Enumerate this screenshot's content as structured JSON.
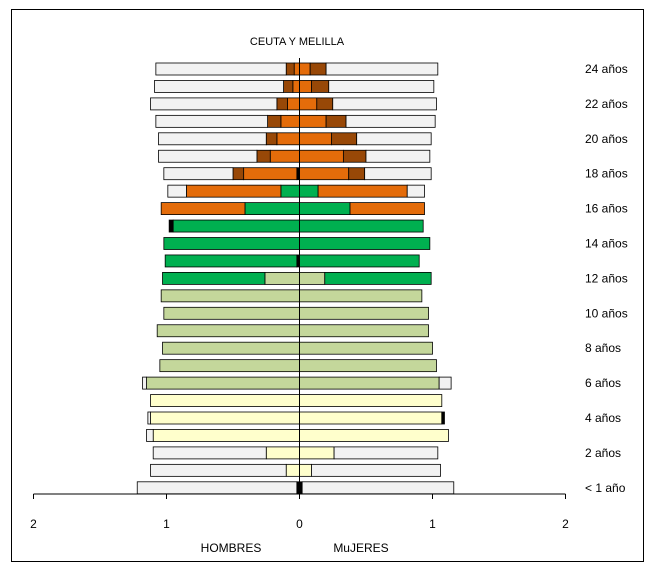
{
  "chart_data": {
    "type": "bar",
    "subtype": "population-pyramid-stacked",
    "title": "CEUTA Y MELILLA",
    "left_label": "HOMBRES",
    "right_label": "MuJERES",
    "x_ticks": [
      "2",
      "1",
      "0",
      "1",
      "2"
    ],
    "xlim": [
      -2,
      2
    ],
    "grid": false,
    "row_labels": {
      "0": "< 1 año",
      "2": "2 años",
      "4": "4 años",
      "6": "6 años",
      "8": "8 años",
      "10": "10 años",
      "12": "12 años",
      "14": "14 años",
      "16": "16 años",
      "18": "18 años",
      "20": "20 años",
      "22": "22 años",
      "24": "24 años"
    },
    "colors": {
      "outline": "#000000",
      "none": "#f2f2f2",
      "infantil": "#ffffcc",
      "primaria": "#c4d79b",
      "eso": "#00b050",
      "bachillerato": "#e46c0a",
      "fp": "#984807",
      "dark": "#000000"
    },
    "rows": [
      {
        "age": 0,
        "left": [
          [
            "dark",
            0.02
          ],
          [
            "none",
            1.2
          ]
        ],
        "right": [
          [
            "dark",
            0.02
          ],
          [
            "none",
            1.14
          ]
        ]
      },
      {
        "age": 1,
        "left": [
          [
            "infantil",
            0.1
          ],
          [
            "none",
            1.02
          ]
        ],
        "right": [
          [
            "infantil",
            0.09
          ],
          [
            "none",
            0.97
          ]
        ]
      },
      {
        "age": 2,
        "left": [
          [
            "infantil",
            0.25
          ],
          [
            "none",
            0.85
          ]
        ],
        "right": [
          [
            "infantil",
            0.26
          ],
          [
            "none",
            0.78
          ]
        ]
      },
      {
        "age": 3,
        "left": [
          [
            "infantil",
            1.1
          ],
          [
            "none",
            0.05
          ]
        ],
        "right": [
          [
            "infantil",
            1.12
          ]
        ]
      },
      {
        "age": 4,
        "left": [
          [
            "infantil",
            1.12
          ],
          [
            "none",
            0.02
          ]
        ],
        "right": [
          [
            "infantil",
            1.07
          ],
          [
            "dark",
            0.02
          ]
        ]
      },
      {
        "age": 5,
        "left": [
          [
            "infantil",
            1.12
          ]
        ],
        "right": [
          [
            "infantil",
            1.07
          ]
        ]
      },
      {
        "age": 6,
        "left": [
          [
            "primaria",
            1.15
          ],
          [
            "none",
            0.03
          ]
        ],
        "right": [
          [
            "primaria",
            1.05
          ],
          [
            "none",
            0.09
          ]
        ]
      },
      {
        "age": 7,
        "left": [
          [
            "primaria",
            1.05
          ]
        ],
        "right": [
          [
            "primaria",
            1.03
          ]
        ]
      },
      {
        "age": 8,
        "left": [
          [
            "primaria",
            1.03
          ]
        ],
        "right": [
          [
            "primaria",
            1.0
          ]
        ]
      },
      {
        "age": 9,
        "left": [
          [
            "primaria",
            1.07
          ]
        ],
        "right": [
          [
            "primaria",
            0.97
          ]
        ]
      },
      {
        "age": 10,
        "left": [
          [
            "primaria",
            1.02
          ]
        ],
        "right": [
          [
            "primaria",
            0.97
          ]
        ]
      },
      {
        "age": 11,
        "left": [
          [
            "primaria",
            1.04
          ]
        ],
        "right": [
          [
            "primaria",
            0.92
          ]
        ]
      },
      {
        "age": 12,
        "left": [
          [
            "primaria",
            0.26
          ],
          [
            "eso",
            0.77
          ]
        ],
        "right": [
          [
            "primaria",
            0.19
          ],
          [
            "eso",
            0.8
          ]
        ]
      },
      {
        "age": 13,
        "left": [
          [
            "dark",
            0.02
          ],
          [
            "eso",
            0.99
          ]
        ],
        "right": [
          [
            "eso",
            0.9
          ]
        ]
      },
      {
        "age": 14,
        "left": [
          [
            "eso",
            1.02
          ]
        ],
        "right": [
          [
            "eso",
            0.98
          ]
        ]
      },
      {
        "age": 15,
        "left": [
          [
            "eso",
            0.95
          ],
          [
            "dark",
            0.03
          ]
        ],
        "right": [
          [
            "eso",
            0.93
          ]
        ]
      },
      {
        "age": 16,
        "left": [
          [
            "eso",
            0.41
          ],
          [
            "bachillerato",
            0.63
          ]
        ],
        "right": [
          [
            "eso",
            0.38
          ],
          [
            "bachillerato",
            0.56
          ]
        ]
      },
      {
        "age": 17,
        "left": [
          [
            "eso",
            0.14
          ],
          [
            "bachillerato",
            0.71
          ],
          [
            "none",
            0.14
          ]
        ],
        "right": [
          [
            "eso",
            0.14
          ],
          [
            "bachillerato",
            0.67
          ],
          [
            "none",
            0.13
          ]
        ]
      },
      {
        "age": 18,
        "left": [
          [
            "dark",
            0.02
          ],
          [
            "bachillerato",
            0.4
          ],
          [
            "fp",
            0.08
          ],
          [
            "none",
            0.52
          ]
        ],
        "right": [
          [
            "bachillerato",
            0.37
          ],
          [
            "fp",
            0.12
          ],
          [
            "none",
            0.5
          ]
        ]
      },
      {
        "age": 19,
        "left": [
          [
            "bachillerato",
            0.22
          ],
          [
            "fp",
            0.1
          ],
          [
            "none",
            0.74
          ]
        ],
        "right": [
          [
            "bachillerato",
            0.33
          ],
          [
            "fp",
            0.17
          ],
          [
            "none",
            0.48
          ]
        ]
      },
      {
        "age": 20,
        "left": [
          [
            "bachillerato",
            0.17
          ],
          [
            "fp",
            0.08
          ],
          [
            "none",
            0.81
          ]
        ],
        "right": [
          [
            "bachillerato",
            0.24
          ],
          [
            "fp",
            0.19
          ],
          [
            "none",
            0.56
          ]
        ]
      },
      {
        "age": 21,
        "left": [
          [
            "bachillerato",
            0.14
          ],
          [
            "fp",
            0.1
          ],
          [
            "none",
            0.84
          ]
        ],
        "right": [
          [
            "bachillerato",
            0.2
          ],
          [
            "fp",
            0.15
          ],
          [
            "none",
            0.67
          ]
        ]
      },
      {
        "age": 22,
        "left": [
          [
            "bachillerato",
            0.09
          ],
          [
            "fp",
            0.08
          ],
          [
            "none",
            0.95
          ]
        ],
        "right": [
          [
            "bachillerato",
            0.13
          ],
          [
            "fp",
            0.12
          ],
          [
            "none",
            0.78
          ]
        ]
      },
      {
        "age": 23,
        "left": [
          [
            "bachillerato",
            0.05
          ],
          [
            "fp",
            0.07
          ],
          [
            "none",
            0.97
          ]
        ],
        "right": [
          [
            "bachillerato",
            0.09
          ],
          [
            "fp",
            0.13
          ],
          [
            "none",
            0.79
          ]
        ]
      },
      {
        "age": 24,
        "left": [
          [
            "bachillerato",
            0.04
          ],
          [
            "fp",
            0.06
          ],
          [
            "none",
            0.98
          ]
        ],
        "right": [
          [
            "bachillerato",
            0.08
          ],
          [
            "fp",
            0.12
          ],
          [
            "none",
            0.84
          ]
        ]
      }
    ]
  }
}
